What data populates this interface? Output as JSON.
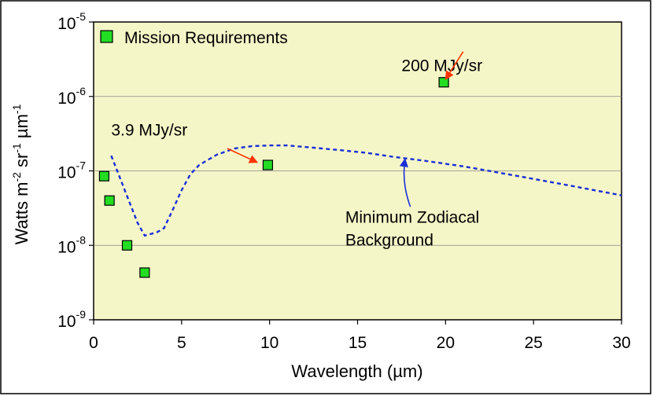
{
  "chart_data": {
    "type": "scatter",
    "title": "",
    "xlabel": "Wavelength (µm)",
    "ylabel": "Watts m-2 sr-1 µm-1",
    "xlim": [
      0,
      30
    ],
    "ylim_log10": [
      -9,
      -5
    ],
    "x_ticks": [
      "0",
      "5",
      "10",
      "15",
      "20",
      "25",
      "30"
    ],
    "y_ticks": [
      {
        "exp": -9,
        "base": "10",
        "sup": "-9"
      },
      {
        "exp": -8,
        "base": "10",
        "sup": "-8"
      },
      {
        "exp": -7,
        "base": "10",
        "sup": "-7"
      },
      {
        "exp": -6,
        "base": "10",
        "sup": "-6"
      },
      {
        "exp": -5,
        "base": "10",
        "sup": "-5"
      }
    ],
    "grid": "horizontal",
    "legend": {
      "position": "top-left",
      "label": "Mission Requirements"
    },
    "series": [
      {
        "name": "Mission Requirements",
        "kind": "markers",
        "color": "#22dd22",
        "points": [
          {
            "x": 0.6,
            "y": 8.5e-08
          },
          {
            "x": 0.9,
            "y": 4e-08
          },
          {
            "x": 1.9,
            "y": 1e-08
          },
          {
            "x": 2.9,
            "y": 4.3e-09
          },
          {
            "x": 9.9,
            "y": 1.2e-07
          },
          {
            "x": 19.9,
            "y": 1.55e-06
          }
        ]
      },
      {
        "name": "Minimum Zodiacal Background",
        "kind": "dashed-line",
        "color": "#1a2fd6",
        "points": [
          {
            "x": 1.0,
            "y": 1.6e-07
          },
          {
            "x": 1.5,
            "y": 8e-08
          },
          {
            "x": 2.0,
            "y": 4e-08
          },
          {
            "x": 2.5,
            "y": 2e-08
          },
          {
            "x": 2.9,
            "y": 1.35e-08
          },
          {
            "x": 3.6,
            "y": 1.5e-08
          },
          {
            "x": 4.0,
            "y": 1.7e-08
          },
          {
            "x": 4.5,
            "y": 3e-08
          },
          {
            "x": 5.0,
            "y": 5.5e-08
          },
          {
            "x": 5.5,
            "y": 9e-08
          },
          {
            "x": 6.0,
            "y": 1.2e-07
          },
          {
            "x": 7.0,
            "y": 1.65e-07
          },
          {
            "x": 8.0,
            "y": 2e-07
          },
          {
            "x": 9.0,
            "y": 2.15e-07
          },
          {
            "x": 10.0,
            "y": 2.2e-07
          },
          {
            "x": 11.0,
            "y": 2.2e-07
          },
          {
            "x": 12.5,
            "y": 2.05e-07
          },
          {
            "x": 14.0,
            "y": 1.9e-07
          },
          {
            "x": 15.5,
            "y": 1.75e-07
          },
          {
            "x": 17.0,
            "y": 1.55e-07
          },
          {
            "x": 19.0,
            "y": 1.35e-07
          },
          {
            "x": 21.0,
            "y": 1.15e-07
          },
          {
            "x": 23.0,
            "y": 9.5e-08
          },
          {
            "x": 25.0,
            "y": 7.8e-08
          },
          {
            "x": 27.0,
            "y": 6.4e-08
          },
          {
            "x": 29.0,
            "y": 5.2e-08
          },
          {
            "x": 30.0,
            "y": 4.7e-08
          }
        ]
      }
    ],
    "annotations": [
      {
        "id": "ann-200",
        "text": "200 MJy/sr",
        "anchor": "start",
        "tx": 17.5,
        "ty": 2.2e-06,
        "arrow_from": [
          21.0,
          4e-06
        ],
        "arrow_to": [
          20.0,
          1.7e-06
        ],
        "color": "#ff3300"
      },
      {
        "id": "ann-3.9",
        "text": "3.9 MJy/sr",
        "anchor": "start",
        "tx": 1.0,
        "ty": 3e-07,
        "arrow_from": [
          7.6,
          2e-07
        ],
        "arrow_to": [
          9.3,
          1.3e-07
        ],
        "color": "#ff3300"
      },
      {
        "id": "ann-zodi",
        "text": "Minimum Zodiacal",
        "text2": "Background",
        "anchor": "start",
        "tx": 14.3,
        "ty": 2e-08,
        "ty2": 1e-08,
        "arrow_from": [
          18.0,
          3.3e-08
        ],
        "arrow_to": [
          17.7,
          1.45e-07
        ],
        "color": "#1a2fd6"
      }
    ],
    "colors": {
      "plot_bg": "#f5f6c8",
      "grid": "#888888",
      "marker": "#22dd22",
      "marker_edge": "#000000"
    }
  }
}
